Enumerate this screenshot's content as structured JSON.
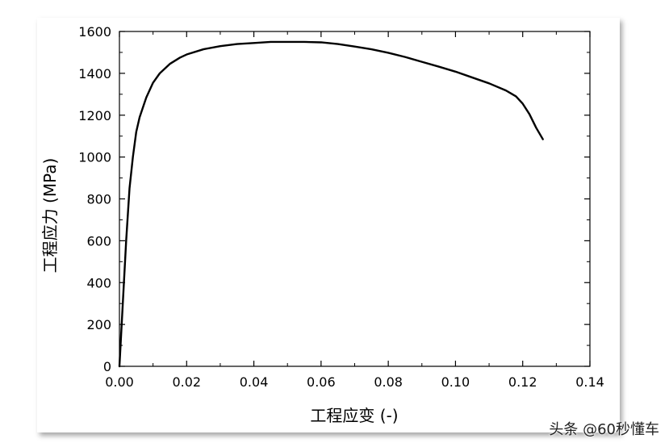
{
  "chart_data": {
    "type": "line",
    "xlabel": "工程应变 (-)",
    "ylabel": "工程应力 (MPa)",
    "xlim": [
      0,
      0.14
    ],
    "ylim": [
      0,
      1600
    ],
    "xticks": [
      0.0,
      0.02,
      0.04,
      0.06,
      0.08,
      0.1,
      0.12,
      0.14
    ],
    "xtick_labels": [
      "0.00",
      "0.02",
      "0.04",
      "0.06",
      "0.08",
      "0.10",
      "0.12",
      "0.14"
    ],
    "yticks": [
      0,
      200,
      400,
      600,
      800,
      1000,
      1200,
      1400,
      1600
    ],
    "ytick_labels": [
      "0",
      "200",
      "400",
      "600",
      "800",
      "1000",
      "1200",
      "1400",
      "1600"
    ],
    "grid": false,
    "series": [
      {
        "color": "#000000",
        "x": [
          0.0,
          0.001,
          0.002,
          0.003,
          0.004,
          0.005,
          0.006,
          0.008,
          0.01,
          0.012,
          0.015,
          0.018,
          0.02,
          0.025,
          0.03,
          0.035,
          0.04,
          0.045,
          0.05,
          0.055,
          0.06,
          0.065,
          0.07,
          0.075,
          0.08,
          0.085,
          0.09,
          0.095,
          0.1,
          0.105,
          0.11,
          0.115,
          0.118,
          0.12,
          0.122,
          0.124,
          0.126
        ],
        "y": [
          0,
          300,
          600,
          850,
          1000,
          1120,
          1190,
          1285,
          1355,
          1400,
          1445,
          1475,
          1490,
          1515,
          1530,
          1540,
          1545,
          1550,
          1550,
          1550,
          1548,
          1540,
          1528,
          1515,
          1498,
          1478,
          1455,
          1432,
          1408,
          1380,
          1352,
          1318,
          1290,
          1255,
          1205,
          1140,
          1085
        ]
      }
    ]
  },
  "watermark": "头条 @60秒懂车"
}
